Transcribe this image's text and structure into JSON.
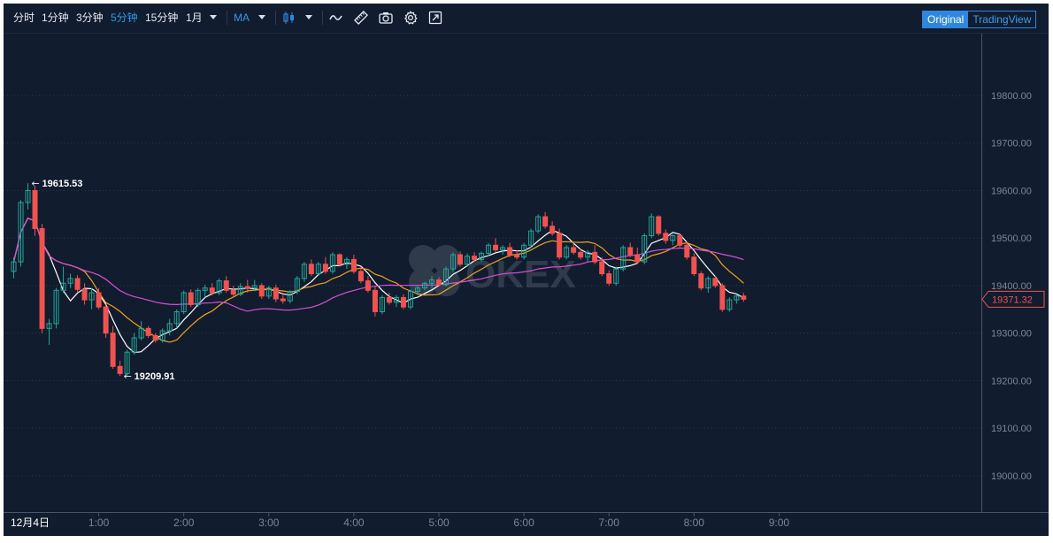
{
  "toolbar": {
    "intervals": [
      "分时",
      "1分钟",
      "3分钟",
      "5分钟",
      "15分钟",
      "1月"
    ],
    "active_interval": "5分钟",
    "indicator": "MA",
    "icons": [
      "chart-type-candle-icon",
      "line-draw-icon",
      "ruler-icon",
      "camera-icon",
      "settings-gear-icon",
      "fullscreen-icon"
    ],
    "view_original": "Original",
    "view_tradingview": "TradingView",
    "active_view": "Original"
  },
  "watermark": "OKEX",
  "colors": {
    "background": "#111c2e",
    "up": "#26a69a",
    "down": "#ef5350",
    "ma_white": "#ffffff",
    "ma_orange": "#f0a31f",
    "ma_purple": "#d94fd6",
    "accent": "#2e86de"
  },
  "chart_data": {
    "type": "candlestick",
    "y_ticks": [
      "19800.00",
      "19700.00",
      "19600.00",
      "19500.00",
      "19400.00",
      "19300.00",
      "19200.00",
      "19100.00",
      "19000.00"
    ],
    "ylim": [
      18930,
      19905
    ],
    "x_ticks": [
      "1:00",
      "2:00",
      "3:00",
      "4:00",
      "5:00",
      "6:00",
      "7:00",
      "8:00",
      "9:00"
    ],
    "date_label": "12月4日",
    "high_annotation": "19615.53",
    "low_annotation": "19209.91",
    "last_price": "19371.32",
    "last_price_value": 19371.32,
    "high_value": 19615.53,
    "low_value": 19209.91,
    "interval_minutes": 5,
    "first_candle_time": "0:00",
    "candles": [
      [
        19430,
        19460,
        19415,
        19450
      ],
      [
        19450,
        19580,
        19440,
        19575
      ],
      [
        19575,
        19615.53,
        19560,
        19600
      ],
      [
        19600,
        19610,
        19505,
        19520
      ],
      [
        19520,
        19530,
        19300,
        19310
      ],
      [
        19310,
        19330,
        19275,
        19320
      ],
      [
        19320,
        19395,
        19310,
        19390
      ],
      [
        19390,
        19440,
        19385,
        19405
      ],
      [
        19405,
        19425,
        19395,
        19415
      ],
      [
        19415,
        19422,
        19385,
        19392
      ],
      [
        19392,
        19405,
        19360,
        19370
      ],
      [
        19370,
        19395,
        19350,
        19385
      ],
      [
        19385,
        19395,
        19350,
        19355
      ],
      [
        19355,
        19360,
        19290,
        19300
      ],
      [
        19300,
        19315,
        19225,
        19230
      ],
      [
        19230,
        19242,
        19209.91,
        19215
      ],
      [
        19215,
        19265,
        19210,
        19260
      ],
      [
        19260,
        19300,
        19255,
        19290
      ],
      [
        19290,
        19325,
        19285,
        19310
      ],
      [
        19310,
        19315,
        19290,
        19295
      ],
      [
        19295,
        19300,
        19280,
        19285
      ],
      [
        19285,
        19310,
        19280,
        19305
      ],
      [
        19305,
        19330,
        19295,
        19320
      ],
      [
        19320,
        19350,
        19310,
        19345
      ],
      [
        19345,
        19390,
        19340,
        19385
      ],
      [
        19385,
        19392,
        19355,
        19360
      ],
      [
        19360,
        19395,
        19355,
        19390
      ],
      [
        19390,
        19402,
        19375,
        19395
      ],
      [
        19395,
        19405,
        19380,
        19385
      ],
      [
        19385,
        19415,
        19380,
        19410
      ],
      [
        19410,
        19420,
        19385,
        19390
      ],
      [
        19390,
        19400,
        19378,
        19382
      ],
      [
        19382,
        19405,
        19378,
        19398
      ],
      [
        19398,
        19412,
        19385,
        19395
      ],
      [
        19395,
        19412,
        19388,
        19400
      ],
      [
        19400,
        19405,
        19372,
        19378
      ],
      [
        19378,
        19400,
        19372,
        19395
      ],
      [
        19395,
        19402,
        19365,
        19372
      ],
      [
        19372,
        19385,
        19362,
        19368
      ],
      [
        19368,
        19390,
        19363,
        19388
      ],
      [
        19388,
        19420,
        19382,
        19415
      ],
      [
        19415,
        19450,
        19408,
        19445
      ],
      [
        19445,
        19455,
        19420,
        19425
      ],
      [
        19425,
        19450,
        19420,
        19445
      ],
      [
        19445,
        19460,
        19425,
        19430
      ],
      [
        19430,
        19470,
        19425,
        19465
      ],
      [
        19465,
        19468,
        19440,
        19445
      ],
      [
        19445,
        19460,
        19435,
        19455
      ],
      [
        19455,
        19465,
        19425,
        19430
      ],
      [
        19430,
        19440,
        19405,
        19410
      ],
      [
        19410,
        19420,
        19385,
        19390
      ],
      [
        19390,
        19400,
        19335,
        19345
      ],
      [
        19345,
        19380,
        19340,
        19375
      ],
      [
        19375,
        19385,
        19360,
        19365
      ],
      [
        19365,
        19380,
        19355,
        19375
      ],
      [
        19375,
        19382,
        19350,
        19355
      ],
      [
        19355,
        19392,
        19350,
        19388
      ],
      [
        19388,
        19400,
        19380,
        19395
      ],
      [
        19395,
        19408,
        19390,
        19405
      ],
      [
        19405,
        19420,
        19395,
        19412
      ],
      [
        19412,
        19418,
        19398,
        19402
      ],
      [
        19402,
        19440,
        19398,
        19435
      ],
      [
        19435,
        19470,
        19430,
        19465
      ],
      [
        19465,
        19472,
        19440,
        19445
      ],
      [
        19445,
        19468,
        19440,
        19462
      ],
      [
        19462,
        19470,
        19450,
        19455
      ],
      [
        19455,
        19472,
        19450,
        19468
      ],
      [
        19468,
        19490,
        19462,
        19485
      ],
      [
        19485,
        19500,
        19470,
        19475
      ],
      [
        19475,
        19485,
        19465,
        19480
      ],
      [
        19480,
        19490,
        19460,
        19465
      ],
      [
        19465,
        19475,
        19455,
        19460
      ],
      [
        19460,
        19490,
        19455,
        19485
      ],
      [
        19485,
        19520,
        19480,
        19515
      ],
      [
        19515,
        19550,
        19510,
        19545
      ],
      [
        19545,
        19555,
        19520,
        19525
      ],
      [
        19525,
        19535,
        19505,
        19510
      ],
      [
        19510,
        19520,
        19455,
        19460
      ],
      [
        19460,
        19485,
        19455,
        19480
      ],
      [
        19480,
        19490,
        19465,
        19470
      ],
      [
        19470,
        19478,
        19455,
        19460
      ],
      [
        19460,
        19475,
        19450,
        19470
      ],
      [
        19470,
        19485,
        19445,
        19450
      ],
      [
        19450,
        19460,
        19420,
        19425
      ],
      [
        19425,
        19432,
        19400,
        19405
      ],
      [
        19405,
        19440,
        19400,
        19435
      ],
      [
        19435,
        19485,
        19430,
        19480
      ],
      [
        19480,
        19490,
        19460,
        19465
      ],
      [
        19465,
        19480,
        19445,
        19450
      ],
      [
        19450,
        19510,
        19445,
        19505
      ],
      [
        19505,
        19552,
        19500,
        19545
      ],
      [
        19545,
        19548,
        19505,
        19510
      ],
      [
        19510,
        19518,
        19488,
        19495
      ],
      [
        19495,
        19508,
        19485,
        19505
      ],
      [
        19505,
        19510,
        19480,
        19485
      ],
      [
        19485,
        19492,
        19455,
        19460
      ],
      [
        19460,
        19468,
        19420,
        19425
      ],
      [
        19425,
        19430,
        19390,
        19395
      ],
      [
        19395,
        19420,
        19385,
        19415
      ],
      [
        19415,
        19420,
        19395,
        19400
      ],
      [
        19400,
        19405,
        19345,
        19350
      ],
      [
        19350,
        19375,
        19345,
        19370
      ],
      [
        19370,
        19382,
        19362,
        19378
      ],
      [
        19378,
        19385,
        19366,
        19371.32
      ]
    ]
  }
}
